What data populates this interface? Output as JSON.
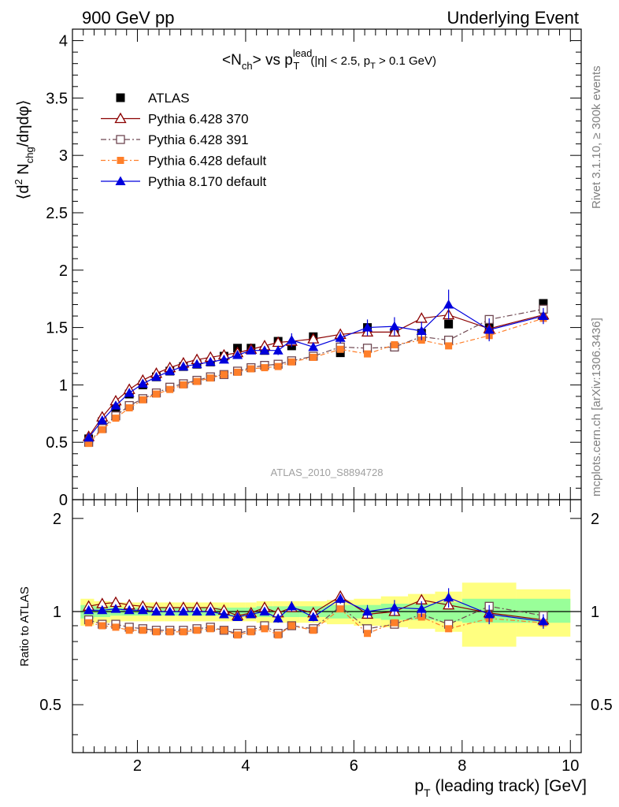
{
  "header": {
    "left": "900 GeV pp",
    "right": "Underlying Event"
  },
  "side_labels": {
    "rivet": "Rivet 3.1.10, ≥ 300k events",
    "mcplots": "mcplots.cern.ch [arXiv:1306.3436]"
  },
  "chart_data": [
    {
      "type": "line",
      "title": "<Nch> vs pT lead (|η| < 2.5, pT > 0.1 GeV)",
      "analysis_tag": "ATLAS_2010_S8894728",
      "ylabel": "⟨d² Nchg/dηdφ⟩",
      "xlim": [
        0.8,
        10.2
      ],
      "ylim": [
        0,
        4.1
      ],
      "yticks": [
        "0",
        "0.5",
        "1",
        "1.5",
        "2",
        "2.5",
        "3",
        "3.5",
        "4"
      ],
      "legend_position": "top-left",
      "x": [
        1.1,
        1.35,
        1.6,
        1.85,
        2.1,
        2.35,
        2.6,
        2.85,
        3.1,
        3.35,
        3.6,
        3.85,
        4.1,
        4.35,
        4.6,
        4.85,
        5.25,
        5.75,
        6.25,
        6.75,
        7.25,
        7.75,
        8.5,
        9.5
      ],
      "series": [
        {
          "name": "ATLAS",
          "color": "#000000",
          "marker": "filled-square",
          "values": [
            0.53,
            0.68,
            0.8,
            0.92,
            1.0,
            1.07,
            1.12,
            1.16,
            1.18,
            1.2,
            1.25,
            1.32,
            1.32,
            1.3,
            1.38,
            1.34,
            1.42,
            1.28,
            1.5,
            1.46,
            1.45,
            1.53,
            1.51,
            1.71
          ]
        },
        {
          "name": "Pythia 6.428 370",
          "color": "#8b0000",
          "marker": "open-triangle",
          "values": [
            0.55,
            0.72,
            0.86,
            0.96,
            1.04,
            1.1,
            1.15,
            1.19,
            1.22,
            1.24,
            1.26,
            1.28,
            1.31,
            1.34,
            1.37,
            1.38,
            1.4,
            1.44,
            1.46,
            1.46,
            1.58,
            1.61,
            1.49,
            1.61
          ]
        },
        {
          "name": "Pythia 6.428 391",
          "color": "#6e4650",
          "marker": "open-square",
          "values": [
            0.5,
            0.62,
            0.73,
            0.82,
            0.88,
            0.93,
            0.98,
            1.01,
            1.04,
            1.07,
            1.09,
            1.12,
            1.15,
            1.17,
            1.18,
            1.21,
            1.25,
            1.33,
            1.32,
            1.33,
            1.42,
            1.39,
            1.57,
            1.66
          ]
        },
        {
          "name": "Pythia 6.428 default",
          "color": "#ff7f2a",
          "marker": "filled-small-square",
          "values": [
            0.49,
            0.61,
            0.71,
            0.8,
            0.87,
            0.92,
            0.96,
            1.0,
            1.03,
            1.06,
            1.09,
            1.11,
            1.14,
            1.15,
            1.16,
            1.2,
            1.24,
            1.31,
            1.27,
            1.35,
            1.39,
            1.34,
            1.43,
            1.58
          ]
        },
        {
          "name": "Pythia 8.170 default",
          "color": "#0000dd",
          "marker": "filled-triangle",
          "values": [
            0.54,
            0.69,
            0.82,
            0.93,
            1.01,
            1.07,
            1.12,
            1.16,
            1.18,
            1.2,
            1.22,
            1.26,
            1.3,
            1.3,
            1.3,
            1.39,
            1.33,
            1.41,
            1.5,
            1.51,
            1.47,
            1.7,
            1.48,
            1.6
          ]
        }
      ],
      "errors": {
        "Pythia 8.170 default": [
          0,
          0,
          0,
          0,
          0,
          0,
          0,
          0,
          0,
          0,
          0,
          0,
          0,
          0,
          0.04,
          0.06,
          0.03,
          0.05,
          0.07,
          0.08,
          0.08,
          0.13,
          0.1,
          0.07
        ]
      }
    },
    {
      "type": "line",
      "ylabel": "Ratio to ATLAS",
      "ylim": [
        0.35,
        2.3
      ],
      "yticks": [
        "0.5",
        "1",
        "2"
      ],
      "xlabel": "pT (leading track) [GeV]",
      "xticks": [
        "2",
        "4",
        "6",
        "8",
        "10"
      ],
      "bands": {
        "bin_edges": [
          0.95,
          1.2,
          1.5,
          1.7,
          2.0,
          2.2,
          2.5,
          2.7,
          3.0,
          3.2,
          3.5,
          3.7,
          4.0,
          4.2,
          4.5,
          4.7,
          5.0,
          5.5,
          6.0,
          6.5,
          7.0,
          7.5,
          8.0,
          9.0,
          10.0
        ],
        "stat_lo": [
          0.95,
          0.96,
          0.97,
          0.97,
          0.97,
          0.97,
          0.97,
          0.97,
          0.97,
          0.97,
          0.97,
          0.97,
          0.97,
          0.96,
          0.96,
          0.96,
          0.96,
          0.95,
          0.95,
          0.94,
          0.94,
          0.93,
          0.92,
          0.92
        ],
        "stat_hi": [
          1.05,
          1.04,
          1.03,
          1.03,
          1.03,
          1.03,
          1.03,
          1.03,
          1.03,
          1.03,
          1.03,
          1.03,
          1.03,
          1.04,
          1.04,
          1.04,
          1.04,
          1.05,
          1.05,
          1.06,
          1.06,
          1.07,
          1.1,
          1.1
        ],
        "syst_lo": [
          0.9,
          0.92,
          0.93,
          0.93,
          0.93,
          0.93,
          0.93,
          0.93,
          0.93,
          0.93,
          0.93,
          0.93,
          0.93,
          0.92,
          0.92,
          0.92,
          0.92,
          0.91,
          0.9,
          0.89,
          0.88,
          0.86,
          0.77,
          0.83
        ],
        "syst_hi": [
          1.1,
          1.08,
          1.07,
          1.07,
          1.07,
          1.07,
          1.07,
          1.07,
          1.07,
          1.07,
          1.07,
          1.07,
          1.07,
          1.08,
          1.08,
          1.08,
          1.08,
          1.09,
          1.1,
          1.12,
          1.14,
          1.16,
          1.24,
          1.18
        ]
      },
      "x": [
        1.1,
        1.35,
        1.6,
        1.85,
        2.1,
        2.35,
        2.6,
        2.85,
        3.1,
        3.35,
        3.6,
        3.85,
        4.1,
        4.35,
        4.6,
        4.85,
        5.25,
        5.75,
        6.25,
        6.75,
        7.25,
        7.75,
        8.5,
        9.5
      ],
      "series": [
        {
          "name": "Pythia 6.428 370",
          "color": "#8b0000",
          "marker": "open-triangle",
          "values": [
            1.04,
            1.06,
            1.07,
            1.05,
            1.04,
            1.03,
            1.03,
            1.03,
            1.03,
            1.03,
            1.01,
            0.97,
            0.99,
            1.03,
            0.99,
            1.03,
            0.99,
            1.12,
            0.98,
            1.0,
            1.09,
            1.05,
            0.99,
            0.94
          ]
        },
        {
          "name": "Pythia 6.428 391",
          "color": "#6e4650",
          "marker": "open-square",
          "values": [
            0.94,
            0.91,
            0.91,
            0.89,
            0.88,
            0.87,
            0.87,
            0.87,
            0.88,
            0.89,
            0.87,
            0.85,
            0.87,
            0.9,
            0.85,
            0.9,
            0.88,
            1.04,
            0.88,
            0.91,
            0.98,
            0.91,
            1.04,
            0.97
          ]
        },
        {
          "name": "Pythia 6.428 default",
          "color": "#ff7f2a",
          "marker": "filled-small-square",
          "values": [
            0.92,
            0.9,
            0.89,
            0.87,
            0.87,
            0.86,
            0.86,
            0.86,
            0.87,
            0.88,
            0.87,
            0.84,
            0.86,
            0.88,
            0.84,
            0.9,
            0.87,
            1.02,
            0.85,
            0.92,
            0.96,
            0.88,
            0.95,
            0.92
          ]
        },
        {
          "name": "Pythia 8.170 default",
          "color": "#0000dd",
          "marker": "filled-triangle",
          "values": [
            1.01,
            1.01,
            1.02,
            1.01,
            1.01,
            1.0,
            1.0,
            1.0,
            1.0,
            1.0,
            0.98,
            0.96,
            0.98,
            1.0,
            0.95,
            1.04,
            0.96,
            1.1,
            1.0,
            1.03,
            1.02,
            1.11,
            0.98,
            0.93
          ]
        }
      ],
      "errors": {
        "Pythia 8.170 default": [
          0,
          0,
          0,
          0,
          0,
          0,
          0,
          0,
          0,
          0,
          0,
          0,
          0,
          0,
          0.03,
          0.04,
          0.03,
          0.04,
          0.05,
          0.06,
          0.06,
          0.08,
          0.07,
          0.05
        ]
      }
    }
  ],
  "colors": {
    "stat_band": "#99ff99",
    "syst_band": "#ffff80",
    "grey_text": "#808080"
  }
}
